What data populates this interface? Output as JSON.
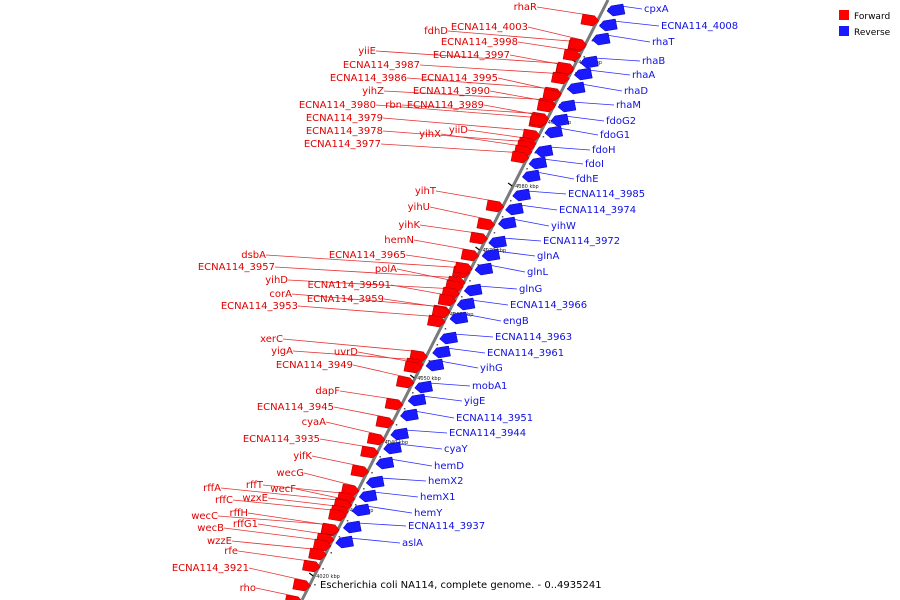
{
  "colors": {
    "forward": "#ff0000",
    "reverse": "#1a1aff",
    "backbone": "#7a7a7a"
  },
  "legend": [
    {
      "label": "Forward",
      "strand": "forward"
    },
    {
      "label": "Reverse",
      "strand": "reverse"
    }
  ],
  "caption": "Escherichia coli NA114, complete genome. - 0..4935241",
  "ticks": [
    "4100 kbp",
    "4090 kbp",
    "4080 kbp",
    "4070 kbp",
    "4060 kbp",
    "4050 kbp",
    "4040 kbp",
    "4030 kbp",
    "4020 kbp"
  ],
  "forward_genes": [
    "rhaR",
    "fdhD",
    "ECNA114_4003",
    "ECNA114_3998",
    "ECNA114_3997",
    "yiiE",
    "ECNA114_3987",
    "ECNA114_3986",
    "ECNA114_3995",
    "yihZ",
    "ECNA114_3990",
    "ECNA114_3980",
    "rbn",
    "ECNA114_3989",
    "ECNA114_3979",
    "yiiD",
    "ECNA114_3978",
    "yihX",
    "ECNA114_3977",
    "yihT",
    "yihU",
    "yihK",
    "hemN",
    "dsbA",
    "ECNA114_3965",
    "ECNA114_3957",
    "polA",
    "yihD",
    "ECNA114_39591",
    "corA",
    "ECNA114_3959",
    "ECNA114_3953",
    "xerC",
    "yigA",
    "uvrD",
    "ECNA114_3949",
    "dapF",
    "ECNA114_3945",
    "cyaA",
    "ECNA114_3935",
    "yifK",
    "wecG",
    "rffT",
    "wecF",
    "rffA",
    "wzxE",
    "rffC",
    "rffH",
    "wecC",
    "rffG1",
    "wecB",
    "wzzE",
    "rfe",
    "ECNA114_3921",
    "rho"
  ],
  "reverse_genes": [
    "cpxA",
    "ECNA114_4008",
    "rhaT",
    "rhaB",
    "rhaA",
    "rhaD",
    "rhaM",
    "fdoG2",
    "fdoG1",
    "fdoH",
    "fdoI",
    "fdhE",
    "ECNA114_3985",
    "ECNA114_3974",
    "yihW",
    "ECNA114_3972",
    "glnA",
    "glnL",
    "glnG",
    "ECNA114_3966",
    "engB",
    "ECNA114_3963",
    "ECNA114_3961",
    "yihG",
    "mobA1",
    "yigE",
    "ECNA114_3951",
    "ECNA114_3944",
    "cyaY",
    "hemD",
    "hemX2",
    "hemX1",
    "hemY",
    "ECNA114_3937",
    "aslA"
  ]
}
